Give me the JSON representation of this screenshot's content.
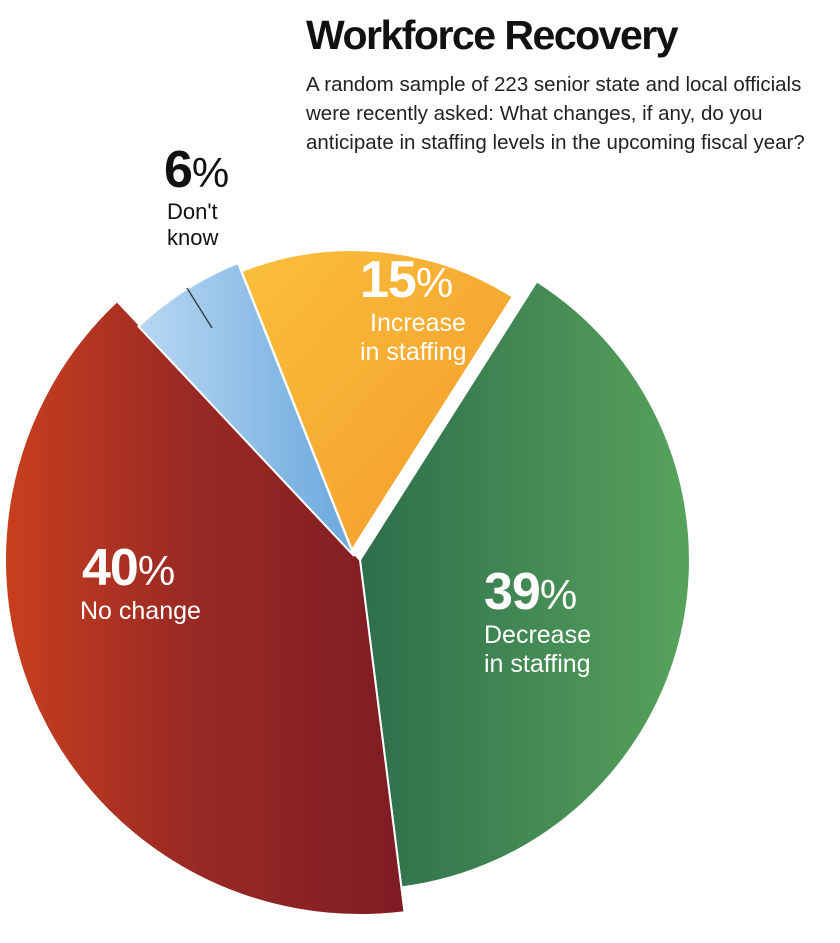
{
  "chart_data": {
    "type": "pie",
    "title": "Workforce Recovery",
    "subtitle": "A random sample of 223 senior state and local officials were recently asked: What changes, if any, do you anticipate in staffing levels in the upcoming fiscal year?",
    "unit": "%",
    "slices": [
      {
        "value": 15,
        "label_lines": [
          "Increase",
          "in staffing"
        ],
        "color": "#f8b133",
        "color_dark": "#f29a2a"
      },
      {
        "value": 39,
        "label_lines": [
          "Decrease",
          "in staffing"
        ],
        "color": "#4e9b5e",
        "color_dark": "#2e6e4b"
      },
      {
        "value": 40,
        "label_lines": [
          "No change"
        ],
        "color": "#8e2226",
        "color_dark": "#c93f1e"
      },
      {
        "value": 6,
        "label_lines": [
          "Don't",
          "know"
        ],
        "color": "#7fb6e4",
        "color_dark": "#b8d8f2"
      }
    ]
  }
}
